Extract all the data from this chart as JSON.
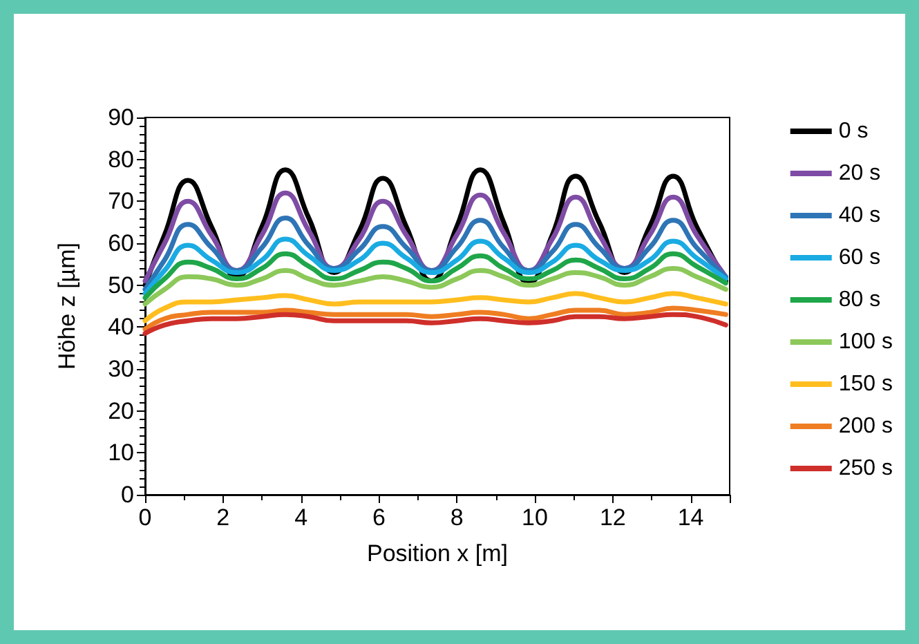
{
  "chart_data": {
    "type": "line",
    "xlabel": "Position x [m]",
    "ylabel": "Höhe z [µm]",
    "x": [
      0,
      0.5,
      1.1,
      1.7,
      2.35,
      3.0,
      3.6,
      4.2,
      4.85,
      5.5,
      6.1,
      6.7,
      7.35,
      8.0,
      8.6,
      9.2,
      9.85,
      10.45,
      11.05,
      11.65,
      12.3,
      12.95,
      13.55,
      14.15,
      14.9
    ],
    "series": [
      {
        "name": "0 s",
        "color": "#000000",
        "values": [
          50,
          62,
          75,
          64,
          52,
          64,
          77.5,
          66,
          53,
          63,
          75.5,
          64,
          51,
          64,
          77.5,
          65,
          50.5,
          62,
          76,
          65,
          53,
          64,
          76,
          64,
          51
        ]
      },
      {
        "name": "20 s",
        "color": "#7f4ca5",
        "values": [
          51,
          60,
          70,
          62,
          53.5,
          62,
          72,
          63,
          54,
          61,
          70,
          62,
          53.5,
          62,
          71.5,
          62.5,
          53.5,
          61,
          71,
          62,
          54,
          62,
          71,
          62,
          52
        ]
      },
      {
        "name": "40 s",
        "color": "#2e75b6",
        "values": [
          49,
          56,
          64.5,
          59,
          53.5,
          59,
          66,
          59.5,
          54,
          58.5,
          64,
          59,
          53.5,
          59,
          65.5,
          59,
          53.5,
          58,
          64.5,
          59,
          54,
          59,
          65.5,
          59,
          52
        ]
      },
      {
        "name": "60 s",
        "color": "#1aabe3",
        "values": [
          48,
          53.5,
          59.5,
          56,
          53,
          56,
          61,
          57,
          53.5,
          56,
          60,
          56.5,
          53,
          56,
          60.5,
          56.5,
          53,
          55.5,
          59.5,
          56,
          53.5,
          56,
          60.5,
          56.5,
          51.5
        ]
      },
      {
        "name": "80 s",
        "color": "#1fa64a",
        "values": [
          47,
          51.5,
          55.5,
          54,
          51.5,
          54,
          57.5,
          54.5,
          51.5,
          53.5,
          55.5,
          54,
          51,
          54,
          57,
          54,
          51.5,
          53.5,
          56,
          54,
          51.5,
          54,
          57.5,
          54.5,
          50.5
        ]
      },
      {
        "name": "100 s",
        "color": "#8cc85a",
        "values": [
          45.5,
          49,
          52,
          51.5,
          50,
          51.5,
          53.5,
          51.5,
          50,
          51,
          52,
          51,
          49.5,
          51.5,
          53.5,
          52,
          50,
          51.5,
          53,
          52,
          50,
          52,
          54,
          52,
          49
        ]
      },
      {
        "name": "150 s",
        "color": "#ffbe1e",
        "values": [
          41.5,
          44.5,
          46,
          46,
          46.5,
          47,
          47.5,
          46.5,
          45.5,
          46,
          46,
          46,
          46,
          46.5,
          47,
          46.5,
          46,
          47,
          48,
          47,
          46,
          47,
          48,
          47,
          45.5
        ]
      },
      {
        "name": "200 s",
        "color": "#ef7d22",
        "values": [
          39.5,
          42,
          43,
          43.5,
          43.5,
          43.5,
          44,
          43.5,
          43,
          43,
          43,
          43,
          42.5,
          43,
          43.5,
          43,
          42,
          43,
          44,
          44,
          43,
          43.5,
          44.5,
          44,
          43
        ]
      },
      {
        "name": "250 s",
        "color": "#cf2f2a",
        "values": [
          38.5,
          40.5,
          41.5,
          42,
          42,
          42.5,
          43,
          42.5,
          41.5,
          41.5,
          41.5,
          41.5,
          41,
          41.5,
          42,
          41.5,
          41,
          41.5,
          42.5,
          42.5,
          42,
          42.5,
          43,
          42.5,
          40.5
        ]
      }
    ],
    "xlim": [
      0,
      15
    ],
    "xticks": [
      0,
      2,
      4,
      6,
      8,
      10,
      12,
      14
    ],
    "ylim": [
      0,
      90
    ],
    "yticks": [
      0,
      10,
      20,
      30,
      40,
      50,
      60,
      70,
      80,
      90
    ],
    "grid": false,
    "legend": "right",
    "marker": "none",
    "line_style": "solid"
  }
}
